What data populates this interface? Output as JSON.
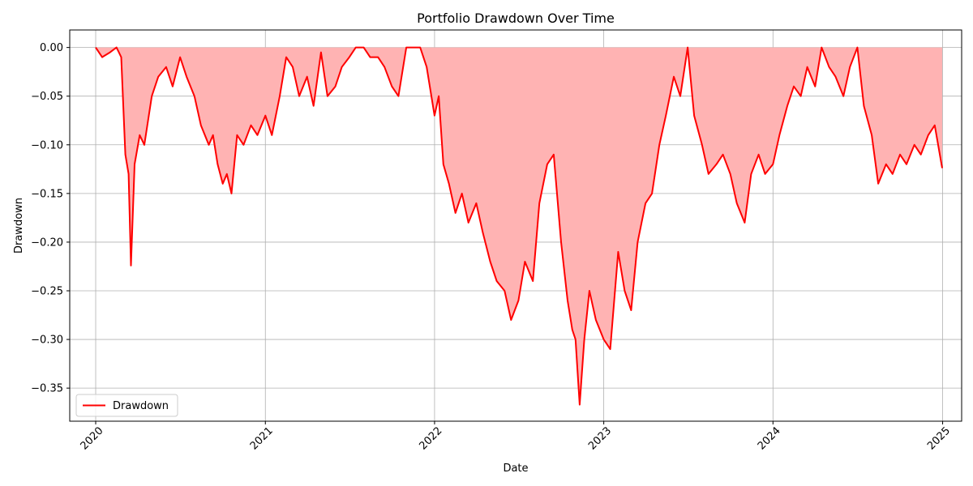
{
  "chart_data": {
    "type": "area",
    "title": "Portfolio Drawdown Over Time",
    "xlabel": "Date",
    "ylabel": "Drawdown",
    "xlim": [
      "2019-11-06",
      "2025-02-11"
    ],
    "ylim": [
      -0.384,
      0.018
    ],
    "x_ticks": [
      "2020",
      "2021",
      "2022",
      "2023",
      "2024",
      "2025"
    ],
    "y_ticks": [
      "0.00",
      "−0.05",
      "−0.10",
      "−0.15",
      "−0.20",
      "−0.25",
      "−0.30",
      "−0.35"
    ],
    "y_tick_values": [
      0.0,
      -0.05,
      -0.1,
      -0.15,
      -0.2,
      -0.25,
      -0.3,
      -0.35
    ],
    "grid": true,
    "legend": {
      "position": "lower left",
      "entries": [
        "Drawdown"
      ]
    },
    "colors": {
      "line": "#ff0000",
      "fill": "#ffb3b3"
    },
    "series": [
      {
        "name": "Drawdown",
        "x": [
          "2020-01-01",
          "2020-01-15",
          "2020-02-01",
          "2020-02-15",
          "2020-02-25",
          "2020-03-05",
          "2020-03-12",
          "2020-03-17",
          "2020-03-25",
          "2020-04-05",
          "2020-04-15",
          "2020-05-01",
          "2020-05-15",
          "2020-06-01",
          "2020-06-15",
          "2020-07-01",
          "2020-07-15",
          "2020-08-01",
          "2020-08-15",
          "2020-09-01",
          "2020-09-10",
          "2020-09-20",
          "2020-10-01",
          "2020-10-10",
          "2020-10-20",
          "2020-11-01",
          "2020-11-15",
          "2020-12-01",
          "2020-12-15",
          "2021-01-01",
          "2021-01-15",
          "2021-02-01",
          "2021-02-15",
          "2021-03-01",
          "2021-03-15",
          "2021-04-01",
          "2021-04-15",
          "2021-05-01",
          "2021-05-15",
          "2021-06-01",
          "2021-06-15",
          "2021-07-01",
          "2021-07-15",
          "2021-08-01",
          "2021-08-15",
          "2021-09-01",
          "2021-09-15",
          "2021-10-01",
          "2021-10-15",
          "2021-11-01",
          "2021-11-15",
          "2021-12-01",
          "2021-12-15",
          "2022-01-01",
          "2022-01-10",
          "2022-01-20",
          "2022-02-01",
          "2022-02-15",
          "2022-03-01",
          "2022-03-15",
          "2022-04-01",
          "2022-04-15",
          "2022-05-01",
          "2022-05-15",
          "2022-06-01",
          "2022-06-15",
          "2022-07-01",
          "2022-07-15",
          "2022-08-01",
          "2022-08-15",
          "2022-09-01",
          "2022-09-15",
          "2022-10-01",
          "2022-10-15",
          "2022-10-25",
          "2022-11-01",
          "2022-11-10",
          "2022-11-20",
          "2022-12-01",
          "2022-12-15",
          "2023-01-01",
          "2023-01-15",
          "2023-02-01",
          "2023-02-15",
          "2023-03-01",
          "2023-03-15",
          "2023-04-01",
          "2023-04-15",
          "2023-05-01",
          "2023-05-15",
          "2023-06-01",
          "2023-06-15",
          "2023-07-01",
          "2023-07-15",
          "2023-08-01",
          "2023-08-15",
          "2023-09-01",
          "2023-09-15",
          "2023-10-01",
          "2023-10-15",
          "2023-11-01",
          "2023-11-15",
          "2023-12-01",
          "2023-12-15",
          "2024-01-01",
          "2024-01-15",
          "2024-02-01",
          "2024-02-15",
          "2024-03-01",
          "2024-03-15",
          "2024-04-01",
          "2024-04-15",
          "2024-05-01",
          "2024-05-15",
          "2024-06-01",
          "2024-06-15",
          "2024-07-01",
          "2024-07-15",
          "2024-08-01",
          "2024-08-15",
          "2024-09-01",
          "2024-09-15",
          "2024-10-01",
          "2024-10-15",
          "2024-11-01",
          "2024-11-15",
          "2024-12-01",
          "2024-12-15",
          "2024-12-31"
        ],
        "values": [
          0.0,
          -0.01,
          -0.005,
          0.0,
          -0.01,
          -0.11,
          -0.13,
          -0.224,
          -0.12,
          -0.09,
          -0.1,
          -0.05,
          -0.03,
          -0.02,
          -0.04,
          -0.01,
          -0.03,
          -0.05,
          -0.08,
          -0.1,
          -0.09,
          -0.12,
          -0.14,
          -0.13,
          -0.15,
          -0.09,
          -0.1,
          -0.08,
          -0.09,
          -0.07,
          -0.09,
          -0.05,
          -0.01,
          -0.02,
          -0.05,
          -0.03,
          -0.06,
          -0.005,
          -0.05,
          -0.04,
          -0.02,
          -0.01,
          0.0,
          0.0,
          -0.01,
          -0.01,
          -0.02,
          -0.04,
          -0.05,
          0.0,
          0.0,
          0.0,
          -0.02,
          -0.07,
          -0.05,
          -0.12,
          -0.14,
          -0.17,
          -0.15,
          -0.18,
          -0.16,
          -0.19,
          -0.22,
          -0.24,
          -0.25,
          -0.28,
          -0.26,
          -0.22,
          -0.24,
          -0.16,
          -0.12,
          -0.11,
          -0.2,
          -0.26,
          -0.29,
          -0.3,
          -0.367,
          -0.3,
          -0.25,
          -0.28,
          -0.3,
          -0.31,
          -0.21,
          -0.25,
          -0.27,
          -0.2,
          -0.16,
          -0.15,
          -0.1,
          -0.07,
          -0.03,
          -0.05,
          0.0,
          -0.07,
          -0.1,
          -0.13,
          -0.12,
          -0.11,
          -0.13,
          -0.16,
          -0.18,
          -0.13,
          -0.11,
          -0.13,
          -0.12,
          -0.09,
          -0.06,
          -0.04,
          -0.05,
          -0.02,
          -0.04,
          0.0,
          -0.02,
          -0.03,
          -0.05,
          -0.02,
          0.0,
          -0.06,
          -0.09,
          -0.14,
          -0.12,
          -0.13,
          -0.11,
          -0.12,
          -0.1,
          -0.11,
          -0.09,
          -0.08,
          -0.124
        ]
      }
    ]
  }
}
